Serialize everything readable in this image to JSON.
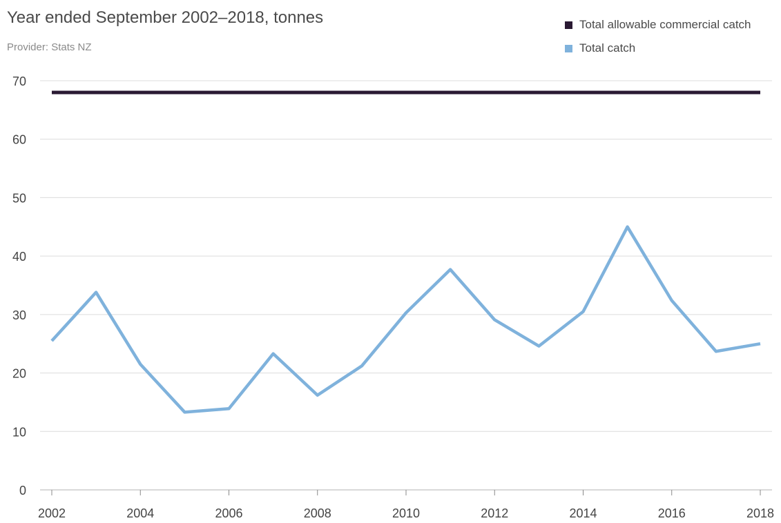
{
  "header": {
    "title": "Year ended September 2002–2018, tonnes",
    "provider": "Provider: Stats NZ"
  },
  "chart_data": {
    "type": "line",
    "title": "Year ended September 2002–2018, tonnes",
    "subtitle": "Provider: Stats NZ",
    "xlabel": "",
    "ylabel": "",
    "x": [
      2002,
      2003,
      2004,
      2005,
      2006,
      2007,
      2008,
      2009,
      2010,
      2011,
      2012,
      2013,
      2014,
      2015,
      2016,
      2017,
      2018
    ],
    "x_ticks": [
      2002,
      2004,
      2006,
      2008,
      2010,
      2012,
      2014,
      2016,
      2018
    ],
    "y_ticks": [
      0,
      10,
      20,
      30,
      40,
      50,
      60,
      70
    ],
    "ylim": [
      0,
      70
    ],
    "grid": true,
    "legend_position": "top-right",
    "series": [
      {
        "name": "Total allowable commercial catch",
        "color": "#2a1a33",
        "values": [
          68,
          68,
          68,
          68,
          68,
          68,
          68,
          68,
          68,
          68,
          68,
          68,
          68,
          68,
          68,
          68,
          68
        ]
      },
      {
        "name": "Total catch",
        "color": "#7fb2dc",
        "values": [
          25.5,
          33.8,
          21.5,
          13.3,
          13.9,
          23.3,
          16.2,
          21.2,
          30.3,
          37.7,
          29.1,
          24.6,
          30.5,
          45.0,
          32.4,
          23.7,
          25.0
        ]
      }
    ]
  }
}
